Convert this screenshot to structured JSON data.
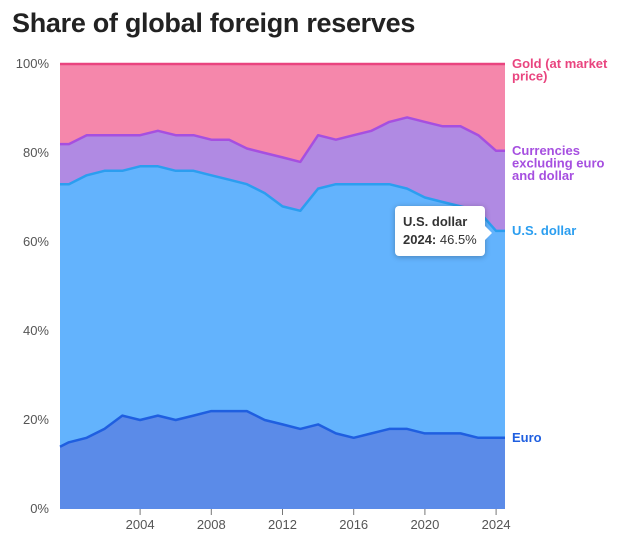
{
  "title": "Share of global foreign reserves",
  "tooltip": {
    "series": "U.S. dollar",
    "year": "2024",
    "value": "46.5%"
  },
  "chart_data": {
    "type": "area",
    "stacked": true,
    "title": "Share of global foreign reserves",
    "xlim": [
      1999.5,
      2024.5
    ],
    "ylim": [
      0,
      100
    ],
    "x_ticks": [
      2004,
      2008,
      2012,
      2016,
      2020,
      2024
    ],
    "y_ticks": [
      0,
      20,
      40,
      60,
      80,
      100
    ],
    "y_tick_labels": [
      "0%",
      "20%",
      "40%",
      "60%",
      "80%",
      "100%"
    ],
    "grid": false,
    "legend": "direct labels on right",
    "x": [
      1999.5,
      2000,
      2001,
      2002,
      2003,
      2004,
      2005,
      2006,
      2007,
      2008,
      2009,
      2010,
      2011,
      2012,
      2013,
      2014,
      2015,
      2016,
      2017,
      2018,
      2019,
      2020,
      2021,
      2022,
      2023,
      2024,
      2024.5
    ],
    "series": [
      {
        "name": "Euro",
        "color": "#5b8be8",
        "line_color": "#1f5fe0",
        "values": [
          14,
          15,
          16,
          18,
          21,
          20,
          21,
          20,
          21,
          22,
          22,
          22,
          20,
          19,
          18,
          19,
          17,
          16,
          17,
          18,
          18,
          17,
          17,
          17,
          16,
          16,
          16
        ]
      },
      {
        "name": "U.S. dollar",
        "color": "#63b3fd",
        "line_color": "#2b9ef0",
        "values": [
          59,
          58,
          59,
          58,
          55,
          57,
          56,
          56,
          55,
          53,
          52,
          51,
          51,
          49,
          49,
          53,
          56,
          57,
          56,
          55,
          54,
          53,
          52,
          51,
          51,
          46.5,
          46.5
        ]
      },
      {
        "name": "Currencies excluding euro and dollar",
        "color": "#b08ae3",
        "line_color": "#a64fe0",
        "values": [
          9,
          9,
          9,
          8,
          8,
          7,
          8,
          8,
          8,
          8,
          9,
          8,
          9,
          11,
          11,
          12,
          10,
          11,
          12,
          14,
          16,
          17,
          17,
          18,
          17,
          18,
          18
        ]
      },
      {
        "name": "Gold (at market price)",
        "color": "#f587ab",
        "line_color": "#e9447f",
        "values": [
          18,
          18,
          16,
          16,
          16,
          16,
          15,
          16,
          16,
          17,
          17,
          19,
          20,
          21,
          22,
          16,
          17,
          16,
          15,
          13,
          12,
          13,
          14,
          14,
          16,
          19.5,
          19.5
        ]
      }
    ],
    "labels": [
      {
        "series": "Gold (at market price)",
        "lines": [
          "Gold (at market",
          "price)"
        ]
      },
      {
        "series": "Currencies excluding euro and dollar",
        "lines": [
          "Currencies",
          "excluding euro",
          "and dollar"
        ]
      },
      {
        "series": "U.S. dollar",
        "lines": [
          "U.S. dollar"
        ]
      },
      {
        "series": "Euro",
        "lines": [
          "Euro"
        ]
      }
    ]
  }
}
